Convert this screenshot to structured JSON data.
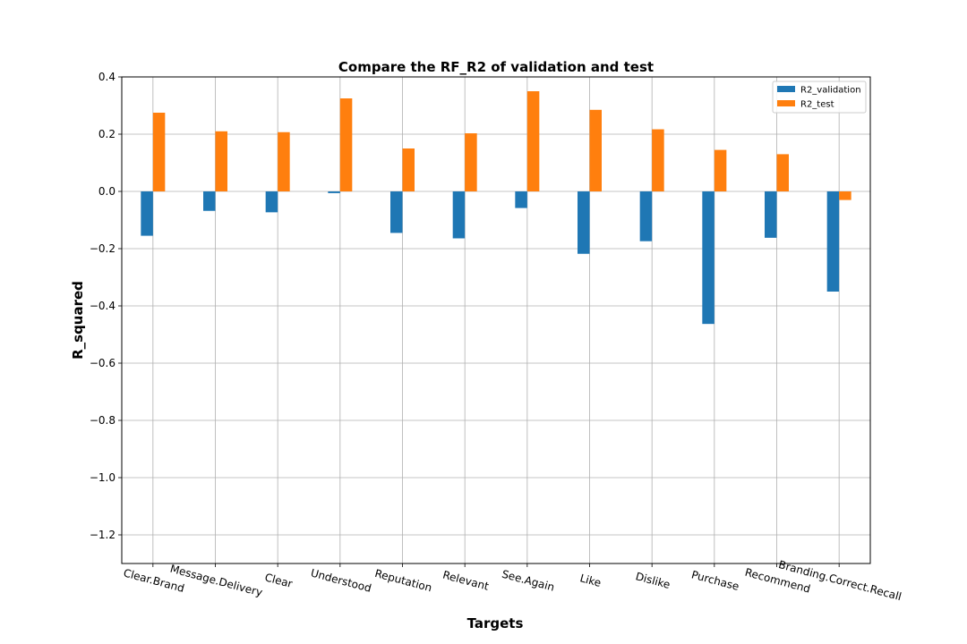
{
  "chart_data": {
    "type": "bar",
    "title": "Compare the RF_R2 of validation and test",
    "xlabel": "Targets",
    "ylabel": "R_squared",
    "categories": [
      "Clear.Brand",
      "Message.Delivery",
      "Clear",
      "Understood",
      "Reputation",
      "Relevant",
      "See.Again",
      "Like",
      "Dislike",
      "Purchase",
      "Recommend",
      "Branding.Correct.Recall"
    ],
    "series": [
      {
        "name": "R2_validation",
        "color": "#1f77b4",
        "values": [
          -0.155,
          -0.068,
          -0.073,
          -0.006,
          -0.145,
          -0.164,
          -0.058,
          -0.218,
          -0.174,
          -0.463,
          -0.162,
          -0.35
        ]
      },
      {
        "name": "R2_test",
        "color": "#ff7f0e",
        "values": [
          0.275,
          0.21,
          0.207,
          0.325,
          0.15,
          0.203,
          0.35,
          0.285,
          0.217,
          0.145,
          0.13,
          -0.03
        ]
      }
    ],
    "ylim": [
      -1.3,
      0.4
    ],
    "yticks": [
      0.4,
      0.2,
      0.0,
      -0.2,
      -0.4,
      -0.6,
      -0.8,
      -1.0,
      -1.2
    ],
    "ytick_labels": [
      "0.4",
      "0.2",
      "0.0",
      "−0.2",
      "−0.4",
      "−0.6",
      "−0.8",
      "−1.0",
      "−1.2"
    ],
    "grid": true,
    "legend_position": "top-right"
  }
}
